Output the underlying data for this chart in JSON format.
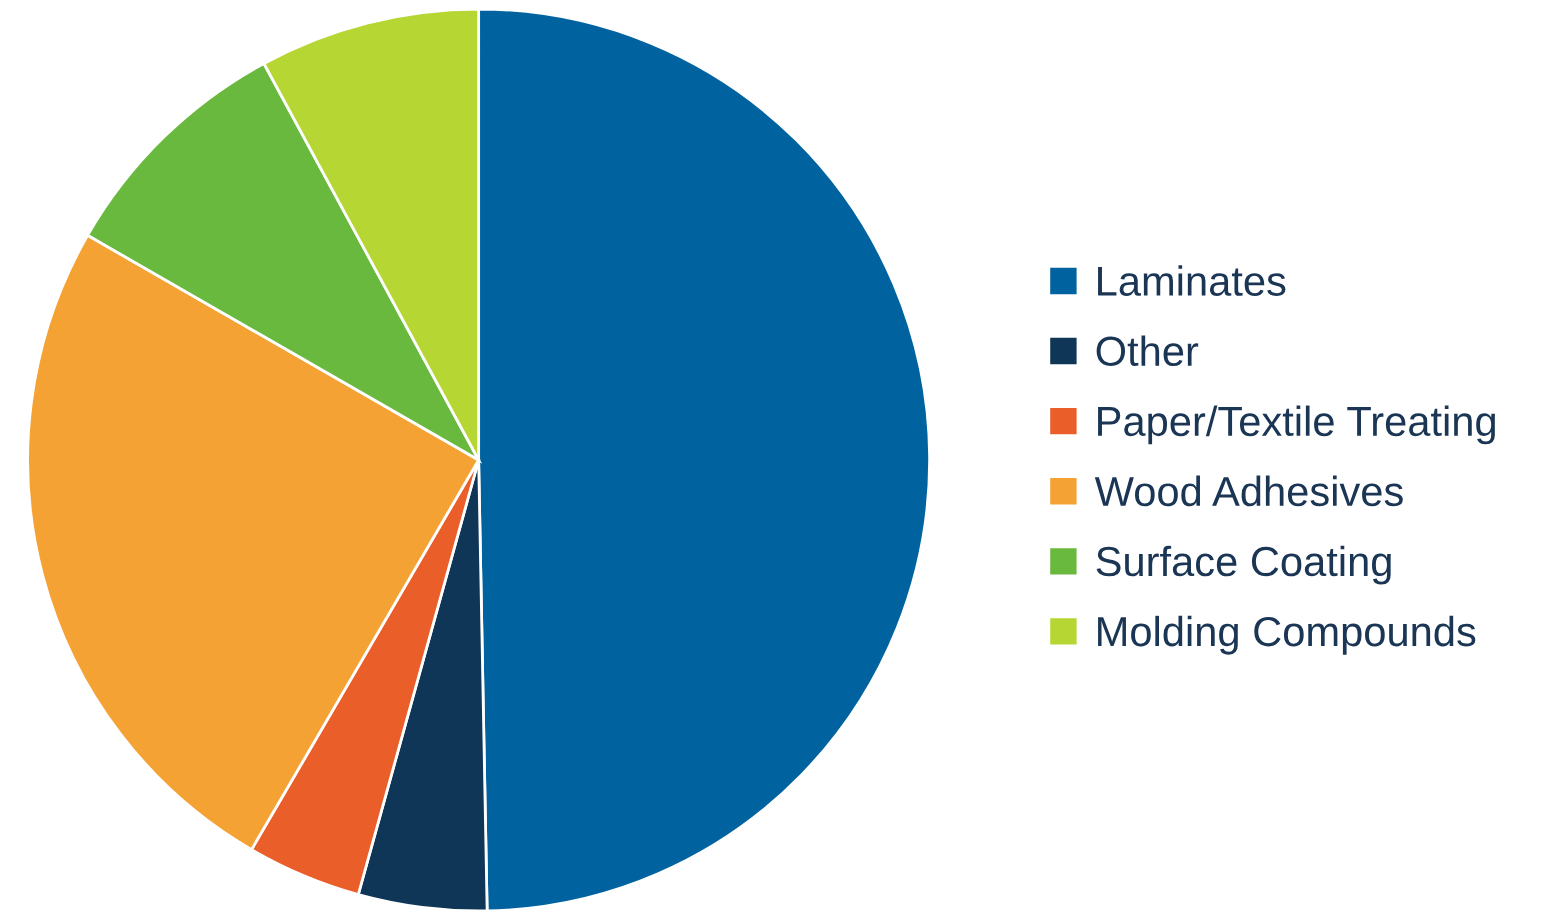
{
  "chart_data": {
    "type": "pie",
    "categories": [
      "Laminates",
      "Other",
      "Paper/Textile Treating",
      "Wood Adhesives",
      "Surface Coating",
      "Molding Compounds"
    ],
    "values": [
      49.7,
      4.6,
      4.1,
      24.9,
      8.8,
      7.9
    ],
    "colors": [
      "#0063a0",
      "#0f3557",
      "#ea5e2a",
      "#f5a234",
      "#6ab93f",
      "#b6d634"
    ],
    "legend": "right"
  }
}
